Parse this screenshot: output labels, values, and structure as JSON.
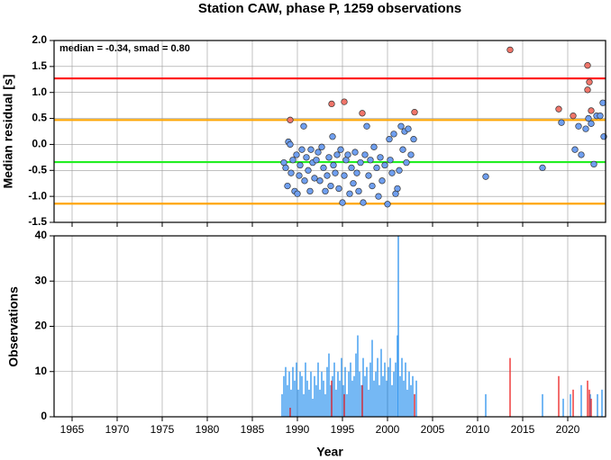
{
  "chart_data": [
    {
      "type": "scatter",
      "title": "Station CAW, phase P, 1259 observations",
      "ylabel": "Median residual [s]",
      "annotation": "median = -0.34, smad = 0.80",
      "xlim": [
        1963,
        2024.2
      ],
      "ylim": [
        -1.5,
        2.0
      ],
      "yticks": [
        {
          "value": -1.5,
          "label": "-1.5"
        },
        {
          "value": -1,
          "label": "-1.0"
        },
        {
          "value": -0.5,
          "label": "-0.5"
        },
        {
          "value": 0,
          "label": "0.0"
        },
        {
          "value": 0.5,
          "label": "0.5"
        },
        {
          "value": 1,
          "label": "1.0"
        },
        {
          "value": 1.5,
          "label": "1.5"
        },
        {
          "value": 2,
          "label": "2.0"
        }
      ],
      "grid": true,
      "lines": [
        {
          "value": 1.27,
          "color": "#ff2020"
        },
        {
          "value": 0.47,
          "color": "#ffa500"
        },
        {
          "value": -0.34,
          "color": "#22ee22"
        },
        {
          "value": -1.14,
          "color": "#ffa500"
        }
      ],
      "series": [
        {
          "color": "#6f9ff0",
          "x": [
            1988.5,
            1988.7,
            1988.9,
            1989.0,
            1989.2,
            1989.3,
            1989.5,
            1989.7,
            1989.9,
            1990.0,
            1990.2,
            1990.3,
            1990.5,
            1990.7,
            1990.8,
            1991.0,
            1991.2,
            1991.4,
            1991.5,
            1991.7,
            1991.9,
            1992.1,
            1992.3,
            1992.5,
            1992.7,
            1992.9,
            1993.1,
            1993.3,
            1993.5,
            1993.7,
            1993.9,
            1994.0,
            1994.2,
            1994.4,
            1994.6,
            1994.8,
            1995.0,
            1995.2,
            1995.4,
            1995.6,
            1995.8,
            1996.0,
            1996.2,
            1996.4,
            1996.6,
            1996.8,
            1997.0,
            1997.3,
            1997.5,
            1997.7,
            1997.9,
            1998.1,
            1998.3,
            1998.5,
            1998.8,
            1999.0,
            1999.2,
            1999.4,
            1999.7,
            2000.0,
            2000.2,
            2000.3,
            2000.5,
            2000.7,
            2000.9,
            2001.1,
            2001.3,
            2001.5,
            2001.7,
            2001.9,
            2002.1,
            2002.3,
            2002.6,
            2002.9,
            2010.9,
            2017.2,
            2019.3,
            2020.8,
            2021.2,
            2021.5,
            2022.0,
            2022.3,
            2022.6,
            2022.9,
            2023.2,
            2023.6,
            2023.9,
            2024.0
          ],
          "values": [
            -0.35,
            -0.45,
            -0.8,
            0.05,
            0.0,
            -0.55,
            -0.3,
            -0.9,
            -0.2,
            -0.95,
            -0.6,
            -0.4,
            -0.1,
            0.35,
            -0.7,
            -0.25,
            -0.5,
            -0.9,
            -0.1,
            -0.35,
            -0.65,
            -0.3,
            -0.15,
            -0.7,
            -0.05,
            -0.45,
            -0.9,
            -0.6,
            -0.25,
            -0.8,
            0.15,
            -0.4,
            -0.55,
            -0.2,
            -0.85,
            -0.1,
            -1.12,
            -0.6,
            -0.3,
            -0.2,
            -0.95,
            -0.45,
            -0.75,
            -0.15,
            -0.55,
            -0.9,
            -0.35,
            -1.12,
            -0.2,
            0.35,
            -0.6,
            -0.3,
            -0.8,
            -0.05,
            -0.45,
            -1.0,
            -0.25,
            -0.7,
            -0.4,
            -1.15,
            0.1,
            -0.3,
            -0.55,
            0.2,
            -0.95,
            -0.85,
            -0.5,
            0.35,
            -0.1,
            0.25,
            -0.35,
            0.3,
            -0.2,
            0.1,
            -0.62,
            -0.45,
            0.42,
            -0.1,
            0.35,
            -0.2,
            0.3,
            0.5,
            0.4,
            -0.38,
            0.55,
            0.55,
            0.8,
            0.15
          ]
        },
        {
          "color": "#f0756a",
          "x": [
            1989.2,
            1993.8,
            1995.2,
            1997.2,
            2003.0,
            2013.6,
            2019.0,
            2020.6,
            2022.2,
            2022.4,
            2022.2,
            2022.6
          ],
          "values": [
            0.47,
            0.78,
            0.82,
            0.6,
            0.62,
            1.82,
            0.68,
            0.55,
            1.52,
            1.2,
            1.05,
            0.65
          ]
        }
      ]
    },
    {
      "type": "bar",
      "xlabel": "Year",
      "ylabel": "Observations",
      "xlim": [
        1963,
        2024.2
      ],
      "ylim": [
        0,
        40
      ],
      "xticks": [
        1965,
        1970,
        1975,
        1980,
        1985,
        1990,
        1995,
        2000,
        2005,
        2010,
        2015,
        2020
      ],
      "yticks": [
        0,
        10,
        20,
        30,
        40
      ],
      "grid": true,
      "series": [
        {
          "color": "#3a9af0",
          "x": [
            1988.3,
            1988.5,
            1988.7,
            1988.9,
            1989.1,
            1989.3,
            1989.5,
            1989.7,
            1989.9,
            1990.1,
            1990.3,
            1990.5,
            1990.7,
            1990.9,
            1991.1,
            1991.3,
            1991.5,
            1991.7,
            1991.9,
            1992.1,
            1992.3,
            1992.5,
            1992.7,
            1992.9,
            1993.1,
            1993.3,
            1993.5,
            1993.7,
            1993.9,
            1994.1,
            1994.3,
            1994.5,
            1994.7,
            1994.9,
            1995.1,
            1995.3,
            1995.5,
            1995.7,
            1995.9,
            1996.1,
            1996.3,
            1996.5,
            1996.7,
            1996.9,
            1997.1,
            1997.3,
            1997.5,
            1997.7,
            1997.9,
            1998.1,
            1998.3,
            1998.5,
            1998.7,
            1998.9,
            1999.1,
            1999.3,
            1999.5,
            1999.7,
            1999.9,
            2000.1,
            2000.3,
            2000.5,
            2000.7,
            2000.9,
            2001.1,
            2001.2,
            2001.4,
            2001.6,
            2001.8,
            2002.0,
            2002.2,
            2002.4,
            2002.6,
            2002.8,
            2003.0,
            2003.2,
            2010.9,
            2017.2,
            2019.5,
            2020.3,
            2021.5,
            2022.5,
            2023.3,
            2023.8
          ],
          "values": [
            5,
            9,
            11,
            7,
            10,
            6,
            11,
            8,
            12,
            6,
            10,
            9,
            5,
            12,
            8,
            6,
            10,
            4,
            9,
            7,
            12,
            6,
            10,
            8,
            5,
            11,
            14,
            7,
            9,
            12,
            6,
            10,
            8,
            13,
            7,
            11,
            5,
            10,
            12,
            8,
            9,
            14,
            18,
            10,
            7,
            13,
            9,
            11,
            6,
            12,
            17,
            8,
            10,
            13,
            7,
            15,
            9,
            12,
            8,
            11,
            13,
            7,
            10,
            12,
            18,
            40,
            9,
            13,
            8,
            12,
            6,
            10,
            7,
            9,
            5,
            8,
            5,
            5,
            4,
            5,
            7,
            5,
            5,
            6
          ]
        },
        {
          "color": "#ee3030",
          "x": [
            1989.2,
            1993.8,
            1995.2,
            1997.2,
            2003.0,
            2013.6,
            2019.0,
            2020.6,
            2022.2,
            2022.4,
            2022.6
          ],
          "values": [
            2,
            8,
            5,
            7,
            5,
            13,
            9,
            6,
            8,
            6,
            4
          ]
        }
      ]
    }
  ]
}
